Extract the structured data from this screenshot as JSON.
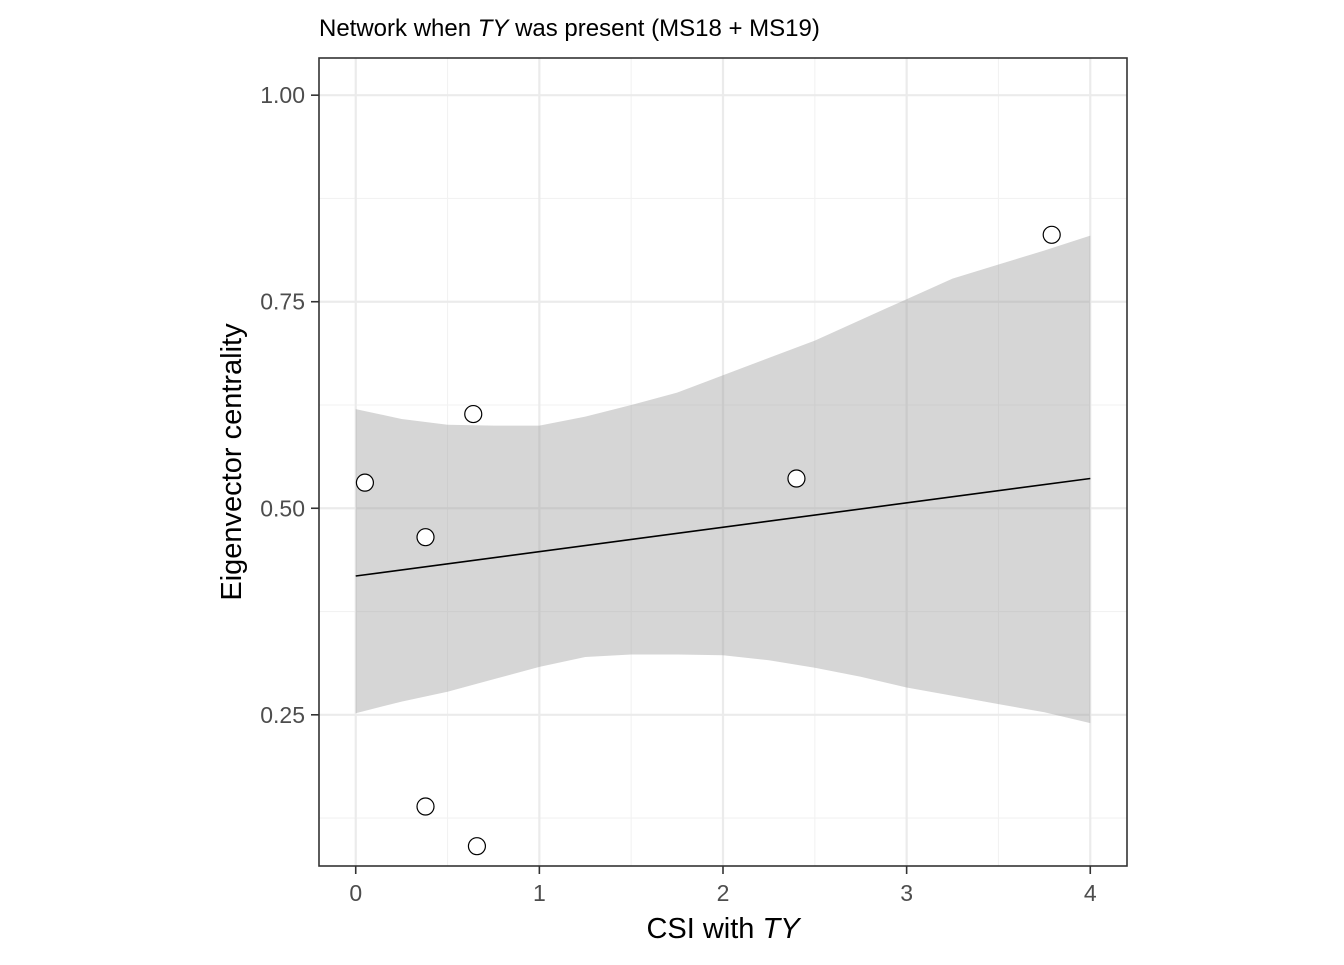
{
  "chart_data": {
    "type": "scatter",
    "title_parts": {
      "before": "Network when ",
      "italic": "TY",
      "after": " was present (MS18 + MS19)"
    },
    "xlabel_parts": {
      "before": "CSI with ",
      "italic": "TY"
    },
    "ylabel": "Eigenvector centrality",
    "xlim": [
      -0.2,
      4.2
    ],
    "ylim": [
      0.067,
      1.045
    ],
    "x_ticks": [
      0,
      1,
      2,
      3,
      4
    ],
    "x_tick_labels": [
      "0",
      "1",
      "2",
      "3",
      "4"
    ],
    "x_minor": [
      0.5,
      1.5,
      2.5,
      3.5
    ],
    "y_ticks": [
      0.25,
      0.5,
      0.75,
      1.0
    ],
    "y_tick_labels": [
      "0.25",
      "0.50",
      "0.75",
      "1.00"
    ],
    "y_minor": [
      0.125,
      0.375,
      0.625,
      0.875
    ],
    "grid": true,
    "points": {
      "x": [
        0.05,
        0.38,
        0.64,
        0.38,
        0.66,
        2.4,
        3.79
      ],
      "y": [
        0.531,
        0.465,
        0.614,
        0.139,
        0.091,
        0.536,
        0.831
      ]
    },
    "fit_line": {
      "x": [
        0,
        4
      ],
      "y": [
        0.418,
        0.536
      ]
    },
    "ribbon": {
      "x": [
        0,
        0.25,
        0.5,
        0.75,
        1.0,
        1.25,
        1.5,
        1.75,
        2.0,
        2.25,
        2.5,
        2.75,
        3.0,
        3.25,
        3.5,
        3.75,
        4.0
      ],
      "upper": [
        0.62,
        0.608,
        0.601,
        0.6,
        0.6,
        0.611,
        0.625,
        0.64,
        0.661,
        0.682,
        0.703,
        0.728,
        0.753,
        0.778,
        0.795,
        0.812,
        0.83
      ],
      "lower": [
        0.252,
        0.266,
        0.278,
        0.293,
        0.308,
        0.32,
        0.323,
        0.323,
        0.322,
        0.316,
        0.307,
        0.296,
        0.283,
        0.273,
        0.263,
        0.253,
        0.24
      ]
    }
  }
}
